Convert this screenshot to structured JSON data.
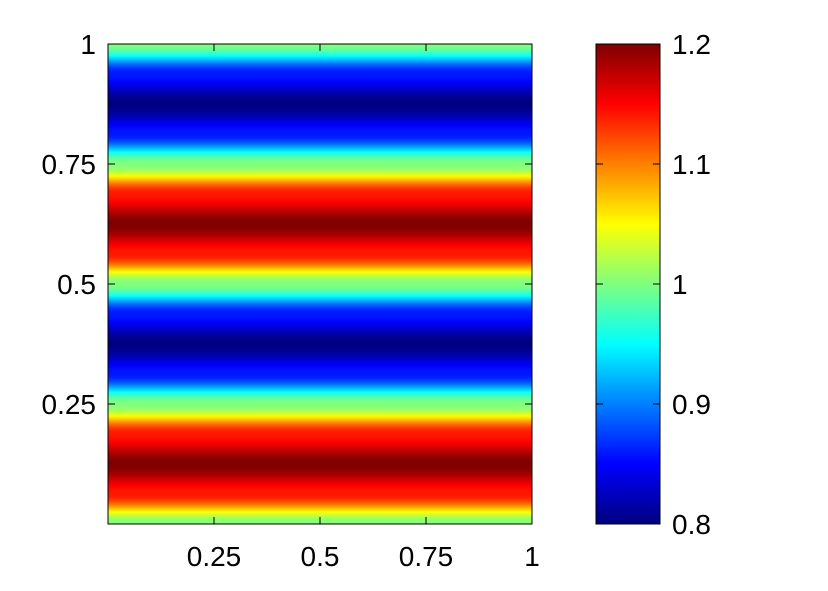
{
  "chart_data": {
    "type": "heatmap",
    "title": "",
    "xlabel": "",
    "ylabel": "",
    "xlim": [
      0,
      1
    ],
    "ylim": [
      0,
      1
    ],
    "x_ticks": [
      {
        "value": 0.25,
        "label": "0.25"
      },
      {
        "value": 0.5,
        "label": "0.5"
      },
      {
        "value": 0.75,
        "label": "0.75"
      },
      {
        "value": 1,
        "label": "1"
      }
    ],
    "y_ticks": [
      {
        "value": 0.25,
        "label": "0.25"
      },
      {
        "value": 0.5,
        "label": "0.5"
      },
      {
        "value": 0.75,
        "label": "0.75"
      },
      {
        "value": 1,
        "label": "1"
      }
    ],
    "field": {
      "description": "value varies only with y; constant along x",
      "y": [
        0.0,
        0.0625,
        0.125,
        0.1875,
        0.25,
        0.3125,
        0.375,
        0.4375,
        0.5,
        0.5625,
        0.625,
        0.6875,
        0.75,
        0.8125,
        0.875,
        0.9375,
        1.0
      ],
      "values": [
        1.0,
        1.141,
        1.2,
        1.141,
        1.0,
        0.859,
        0.8,
        0.859,
        1.0,
        1.141,
        1.2,
        1.141,
        1.0,
        0.859,
        0.8,
        0.859,
        1.0
      ]
    },
    "colormap": "jet",
    "colorbar": {
      "range": [
        0.8,
        1.2
      ],
      "ticks": [
        {
          "value": 0.8,
          "label": "0.8"
        },
        {
          "value": 0.9,
          "label": "0.9"
        },
        {
          "value": 1.0,
          "label": "1"
        },
        {
          "value": 1.1,
          "label": "1.1"
        },
        {
          "value": 1.2,
          "label": "1.2"
        }
      ]
    },
    "grid": false,
    "legend": "none"
  }
}
